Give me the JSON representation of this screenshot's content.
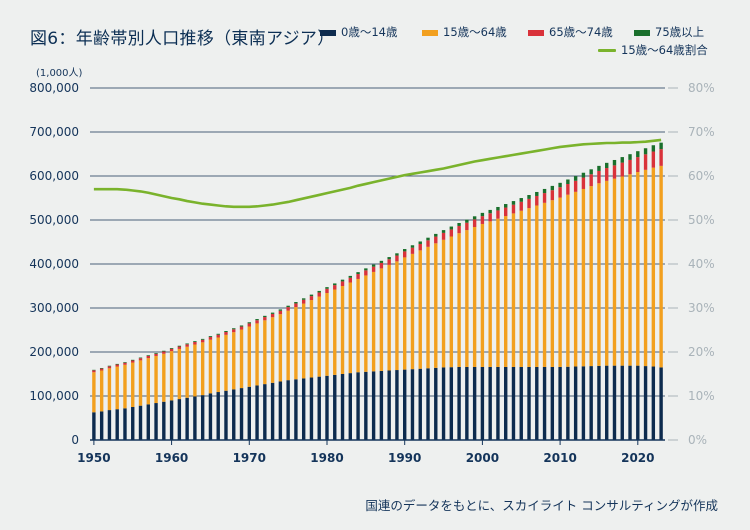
{
  "title": "図6：年齢帯別人口推移（東南アジア）",
  "unit_label": "(1,000人)",
  "source": "国連のデータをもとに、スカイライト コンサルティングが作成",
  "colors": {
    "age_0_14": "#0d2b4e",
    "age_15_64": "#f2a01f",
    "age_65_74": "#d9323a",
    "age_75_plus": "#1a6f2c",
    "ratio_line": "#7ab32c",
    "grid": "#4a5f79",
    "background": "#eef0ef"
  },
  "legend": {
    "s0": "0歳～14歳",
    "s1": "15歳～64歳",
    "s2": "65歳～74歳",
    "s3": "75歳以上",
    "s4": "15歳～64歳割合"
  },
  "chart_data": {
    "type": "bar",
    "stacked": true,
    "x": [
      1950,
      1951,
      1952,
      1953,
      1954,
      1955,
      1956,
      1957,
      1958,
      1959,
      1960,
      1961,
      1962,
      1963,
      1964,
      1965,
      1966,
      1967,
      1968,
      1969,
      1970,
      1971,
      1972,
      1973,
      1974,
      1975,
      1976,
      1977,
      1978,
      1979,
      1980,
      1981,
      1982,
      1983,
      1984,
      1985,
      1986,
      1987,
      1988,
      1989,
      1990,
      1991,
      1992,
      1993,
      1994,
      1995,
      1996,
      1997,
      1998,
      1999,
      2000,
      2001,
      2002,
      2003,
      2004,
      2005,
      2006,
      2007,
      2008,
      2009,
      2010,
      2011,
      2012,
      2013,
      2014,
      2015,
      2016,
      2017,
      2018,
      2019,
      2020,
      2021,
      2022,
      2023
    ],
    "series": [
      {
        "name": "0歳～14歳",
        "axis": "left",
        "values": [
          63000,
          65000,
          68000,
          70000,
          72000,
          75000,
          78000,
          81000,
          84000,
          87000,
          90000,
          93000,
          96000,
          99000,
          102000,
          106000,
          109000,
          112000,
          115000,
          118000,
          121000,
          124000,
          127000,
          130000,
          133000,
          136000,
          138000,
          140000,
          142000,
          144000,
          146000,
          148000,
          150000,
          152000,
          154000,
          155000,
          156000,
          157000,
          158000,
          159000,
          160000,
          161000,
          162000,
          163000,
          164000,
          165000,
          165500,
          166000,
          166000,
          166000,
          166000,
          166000,
          166000,
          166000,
          166000,
          166000,
          166000,
          166000,
          166000,
          166000,
          166000,
          166500,
          167000,
          167500,
          168000,
          168500,
          169000,
          169000,
          169000,
          169000,
          169000,
          168000,
          167000,
          165000
        ]
      },
      {
        "name": "15歳～64歳",
        "axis": "left",
        "values": [
          91000,
          93000,
          95000,
          97000,
          99000,
          101000,
          103000,
          105000,
          107000,
          109000,
          112000,
          114000,
          116000,
          118000,
          120000,
          122000,
          124000,
          127000,
          130000,
          133000,
          137000,
          141000,
          145000,
          149000,
          153000,
          158000,
          164000,
          170000,
          176000,
          182000,
          188000,
          194000,
          200000,
          206000,
          212000,
          219000,
          226000,
          233000,
          240000,
          247000,
          255000,
          262000,
          269000,
          276000,
          283000,
          290000,
          297000,
          304000,
          311000,
          318000,
          325000,
          331000,
          337000,
          343000,
          349000,
          355000,
          361000,
          367000,
          373000,
          379000,
          385000,
          391000,
          397000,
          403000,
          409000,
          415000,
          420000,
          425000,
          430000,
          435000,
          440000,
          446000,
          452000,
          458000
        ]
      },
      {
        "name": "65歳～74歳",
        "axis": "left",
        "values": [
          4200,
          4300,
          4400,
          4500,
          4600,
          4700,
          4800,
          4900,
          5000,
          5100,
          5300,
          5400,
          5500,
          5700,
          5800,
          6000,
          6200,
          6400,
          6600,
          6800,
          7000,
          7200,
          7400,
          7600,
          7800,
          8100,
          8400,
          8700,
          9000,
          9300,
          9700,
          10000,
          10400,
          10800,
          11200,
          11600,
          12000,
          12400,
          12800,
          13200,
          13700,
          14100,
          14500,
          14900,
          15300,
          15700,
          16100,
          16500,
          16900,
          17300,
          17800,
          18300,
          18800,
          19300,
          19800,
          20400,
          21000,
          21600,
          22200,
          22800,
          23500,
          24300,
          25100,
          26000,
          27000,
          28000,
          29100,
          30200,
          31400,
          32600,
          34000,
          35300,
          36600,
          38000
        ]
      },
      {
        "name": "75歳以上",
        "axis": "left",
        "values": [
          1300,
          1350,
          1400,
          1450,
          1500,
          1550,
          1600,
          1650,
          1700,
          1750,
          1800,
          1850,
          1900,
          1950,
          2000,
          2100,
          2200,
          2300,
          2400,
          2500,
          2600,
          2700,
          2800,
          2900,
          3000,
          3100,
          3200,
          3300,
          3400,
          3500,
          3700,
          3850,
          4000,
          4150,
          4300,
          4500,
          4650,
          4800,
          4950,
          5100,
          5300,
          5500,
          5700,
          5900,
          6100,
          6300,
          6500,
          6700,
          6900,
          7100,
          7400,
          7600,
          7800,
          8000,
          8200,
          8500,
          8800,
          9100,
          9400,
          9700,
          10000,
          10300,
          10600,
          10900,
          11200,
          11500,
          11800,
          12200,
          12600,
          13000,
          13400,
          13800,
          14300,
          14800
        ]
      },
      {
        "name": "15歳～64歳割合",
        "axis": "right",
        "type": "line",
        "values": [
          57.0,
          57.0,
          57.0,
          57.0,
          56.9,
          56.7,
          56.5,
          56.2,
          55.8,
          55.4,
          55.0,
          54.7,
          54.3,
          54.0,
          53.7,
          53.5,
          53.3,
          53.1,
          53.0,
          53.0,
          53.0,
          53.1,
          53.3,
          53.5,
          53.8,
          54.1,
          54.5,
          54.9,
          55.3,
          55.7,
          56.1,
          56.5,
          56.9,
          57.3,
          57.8,
          58.2,
          58.6,
          59.0,
          59.4,
          59.8,
          60.2,
          60.5,
          60.8,
          61.1,
          61.4,
          61.7,
          62.1,
          62.5,
          62.9,
          63.3,
          63.6,
          63.9,
          64.2,
          64.5,
          64.8,
          65.1,
          65.4,
          65.7,
          66.0,
          66.3,
          66.6,
          66.8,
          67.0,
          67.2,
          67.3,
          67.4,
          67.5,
          67.5,
          67.6,
          67.6,
          67.7,
          67.8,
          68.0,
          68.2
        ]
      }
    ],
    "xticks": [
      1950,
      1960,
      1970,
      1980,
      1990,
      2000,
      2010,
      2020
    ],
    "xticklabels": [
      "1950",
      "1960",
      "1970",
      "1980",
      "1990",
      "2000",
      "2010",
      "2020"
    ],
    "yticks_left": [
      0,
      100000,
      200000,
      300000,
      400000,
      500000,
      600000,
      700000,
      800000
    ],
    "ytick_labels_left": [
      "0",
      "100,000",
      "200,000",
      "300,000",
      "400,000",
      "500,000",
      "600,000",
      "700,000",
      "800,000"
    ],
    "ylim_left": [
      0,
      800000
    ],
    "ytick_labels_right": [
      "0%",
      "10%",
      "20%",
      "30%",
      "40%",
      "50%",
      "60%",
      "70%",
      "80%"
    ],
    "ylim_right": [
      0,
      80
    ],
    "grid": true,
    "legend_position": "top-right"
  }
}
